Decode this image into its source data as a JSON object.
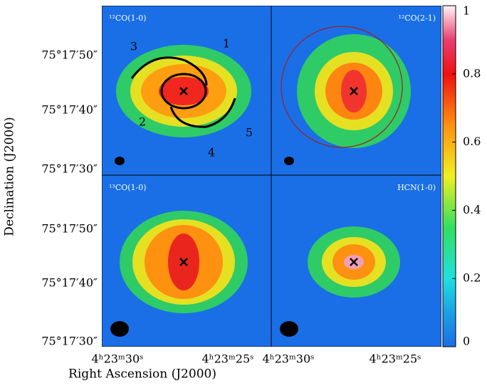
{
  "chart_data": {
    "type": "image-grid",
    "xlabel": "Right Ascension (J2000)",
    "ylabel": "Declination (J2000)",
    "xticklabels": [
      "4ʰ23ᵐ30ˢ",
      "4ʰ23ᵐ25ˢ"
    ],
    "yticklabels": [
      "75°17′50″",
      "75°17′40″",
      "75°17′30″"
    ],
    "panels": [
      {
        "label": "¹²CO(1-0)"
      },
      {
        "label": "¹²CO(2-1)"
      },
      {
        "label": "¹³CO(1-0)"
      },
      {
        "label": "HCN(1-0)"
      }
    ],
    "annotations": [
      "1",
      "2",
      "3",
      "4",
      "5"
    ],
    "colorbar": {
      "lim": [
        0,
        1
      ],
      "ticks": [
        0,
        0.2,
        0.4,
        0.6,
        0.8,
        1
      ]
    }
  }
}
